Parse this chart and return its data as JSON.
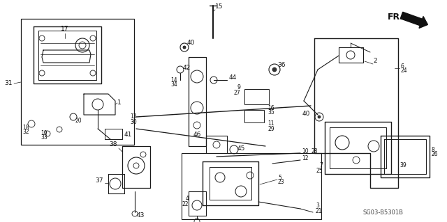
{
  "background_color": "#ffffff",
  "diagram_code": "SG03-B5301B",
  "fig_width": 6.4,
  "fig_height": 3.19,
  "dpi": 100,
  "image_data": "target_embed"
}
